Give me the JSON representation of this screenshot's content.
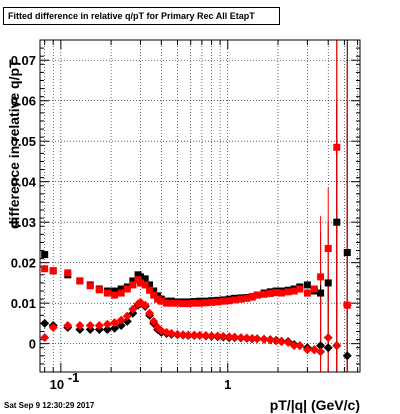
{
  "title": "Fitted difference in relative q/pT for Primary Rec All EtapT",
  "footer": "Sat Sep  9 12:30:29 2017",
  "colors": {
    "series_black": "#000000",
    "series_red": "#ff0000",
    "grid": "#000000",
    "frame": "#000000"
  },
  "chart_data": {
    "type": "scatter",
    "title": "Fitted difference in relative q/pT for Primary Rec All EtapT",
    "xlabel": "pT/|q| (GeV/c)",
    "ylabel": "difference in relative q/pT",
    "xscale": "log",
    "xlim": [
      0.075,
      6.2
    ],
    "ylim": [
      -0.007,
      0.075
    ],
    "grid": true,
    "y_ticks": [
      0,
      0.01,
      0.02,
      0.03,
      0.04,
      0.05,
      0.06,
      0.07
    ],
    "y_tick_labels": [
      "0",
      "0.01",
      "0.02",
      "0.03",
      "0.04",
      "0.05",
      "0.06",
      "0.07"
    ],
    "x_ticks": [
      0.1,
      1
    ],
    "x_tick_labels": [
      "10^-1",
      "1"
    ],
    "series": [
      {
        "color": "#000000",
        "marker": "square",
        "x": [
          0.08,
          0.09,
          0.11,
          0.13,
          0.15,
          0.17,
          0.19,
          0.21,
          0.23,
          0.25,
          0.27,
          0.29,
          0.3,
          0.32,
          0.34,
          0.36,
          0.38,
          0.4,
          0.43,
          0.46,
          0.5,
          0.54,
          0.58,
          0.63,
          0.68,
          0.74,
          0.8,
          0.87,
          0.94,
          1.02,
          1.1,
          1.2,
          1.3,
          1.4,
          1.5,
          1.65,
          1.8,
          1.95,
          2.1,
          2.3,
          2.5,
          2.7,
          3.0,
          3.3,
          3.6,
          4.0,
          4.5,
          5.2
        ],
        "y": [
          0.022,
          0.018,
          0.017,
          0.0155,
          0.0145,
          0.0135,
          0.013,
          0.013,
          0.0135,
          0.014,
          0.0155,
          0.017,
          0.0165,
          0.016,
          0.0145,
          0.013,
          0.0118,
          0.011,
          0.0105,
          0.0105,
          0.0103,
          0.0103,
          0.0103,
          0.0104,
          0.0105,
          0.0105,
          0.0106,
          0.0107,
          0.0108,
          0.011,
          0.0112,
          0.0113,
          0.0114,
          0.0116,
          0.012,
          0.0125,
          0.0128,
          0.013,
          0.013,
          0.0132,
          0.0135,
          0.014,
          0.0145,
          0.013,
          0.0125,
          0.015,
          0.03,
          0.0225
        ]
      },
      {
        "color": "#ff0000",
        "marker": "square",
        "x": [
          0.08,
          0.09,
          0.11,
          0.13,
          0.15,
          0.17,
          0.19,
          0.21,
          0.23,
          0.25,
          0.27,
          0.29,
          0.3,
          0.32,
          0.34,
          0.36,
          0.38,
          0.4,
          0.43,
          0.46,
          0.5,
          0.54,
          0.58,
          0.63,
          0.68,
          0.74,
          0.8,
          0.87,
          0.94,
          1.02,
          1.1,
          1.2,
          1.3,
          1.4,
          1.5,
          1.65,
          1.8,
          1.95,
          2.1,
          2.3,
          2.5,
          2.7,
          3.0,
          3.3,
          3.6,
          4.0,
          4.5,
          5.2
        ],
        "y": [
          0.0185,
          0.018,
          0.0175,
          0.0155,
          0.0143,
          0.0133,
          0.0125,
          0.012,
          0.0125,
          0.0135,
          0.0145,
          0.0158,
          0.015,
          0.0145,
          0.0132,
          0.012,
          0.011,
          0.0105,
          0.01,
          0.01,
          0.01,
          0.0099,
          0.0099,
          0.01,
          0.01,
          0.0101,
          0.0102,
          0.0103,
          0.0105,
          0.0106,
          0.0108,
          0.011,
          0.0112,
          0.0115,
          0.012,
          0.0122,
          0.0124,
          0.0126,
          0.0125,
          0.0128,
          0.013,
          0.0135,
          0.0125,
          0.0135,
          0.0165,
          0.0235,
          0.0485,
          0.0095
        ]
      },
      {
        "color": "#000000",
        "marker": "diamond",
        "x": [
          0.08,
          0.09,
          0.11,
          0.13,
          0.15,
          0.17,
          0.19,
          0.21,
          0.23,
          0.25,
          0.27,
          0.29,
          0.3,
          0.32,
          0.34,
          0.36,
          0.38,
          0.4,
          0.43,
          0.46,
          0.5,
          0.54,
          0.58,
          0.63,
          0.68,
          0.74,
          0.8,
          0.87,
          0.94,
          1.02,
          1.1,
          1.2,
          1.3,
          1.4,
          1.5,
          1.65,
          1.8,
          1.95,
          2.1,
          2.3,
          2.5,
          2.7,
          3.0,
          3.3,
          3.6,
          4.0,
          4.5,
          5.2
        ],
        "y": [
          0.005,
          0.0045,
          0.004,
          0.0035,
          0.0035,
          0.0035,
          0.0035,
          0.0038,
          0.0045,
          0.0055,
          0.0075,
          0.0095,
          0.01,
          0.0092,
          0.007,
          0.005,
          0.0035,
          0.0028,
          0.0025,
          0.0023,
          0.0022,
          0.0021,
          0.002,
          0.002,
          0.002,
          0.0019,
          0.0018,
          0.0017,
          0.0016,
          0.0015,
          0.0015,
          0.0014,
          0.0013,
          0.0012,
          0.0012,
          0.0011,
          0.001,
          0.0008,
          0.0006,
          0.0005,
          -0.0002,
          -0.0005,
          -0.001,
          -0.0015,
          -0.0005,
          -0.001,
          -0.0005,
          -0.003
        ]
      },
      {
        "color": "#ff0000",
        "marker": "diamond",
        "x": [
          0.08,
          0.09,
          0.11,
          0.13,
          0.15,
          0.17,
          0.19,
          0.21,
          0.23,
          0.25,
          0.27,
          0.29,
          0.3,
          0.32,
          0.34,
          0.36,
          0.38,
          0.4,
          0.43,
          0.46,
          0.5,
          0.54,
          0.58,
          0.63,
          0.68,
          0.74,
          0.8,
          0.87,
          0.94,
          1.02,
          1.1,
          1.2,
          1.3,
          1.4,
          1.5,
          1.65,
          1.8,
          1.95,
          2.1,
          2.3,
          2.5,
          2.7,
          3.0,
          3.3,
          3.6,
          4.0,
          4.5,
          5.2
        ],
        "y": [
          0.0015,
          0.004,
          0.0045,
          0.0045,
          0.0045,
          0.0045,
          0.0048,
          0.0052,
          0.0058,
          0.0068,
          0.0085,
          0.0098,
          0.0102,
          0.0095,
          0.0075,
          0.0055,
          0.004,
          0.0032,
          0.0028,
          0.0025,
          0.0023,
          0.0022,
          0.0021,
          0.0021,
          0.002,
          0.002,
          0.0019,
          0.0019,
          0.0018,
          0.0017,
          0.0016,
          0.0015,
          0.0014,
          0.0013,
          0.0012,
          0.0011,
          0.0009,
          0.0007,
          0.0005,
          0.0003,
          -0.0005,
          -0.0005,
          -0.0015,
          -0.0015,
          -0.002,
          0.0015,
          -0.0005,
          0.0095
        ]
      }
    ]
  }
}
